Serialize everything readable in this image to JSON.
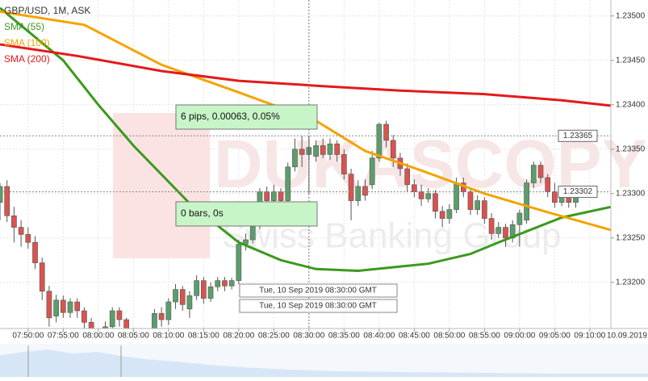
{
  "chart_data": {
    "type": "candlestick",
    "title": "GBP/USD, 1M, ASK",
    "watermark": "DUKASCOPY",
    "watermark_subtitle": "Swiss Banking Group",
    "xlim": [
      466,
      553
    ],
    "ylim": [
      1.23148,
      1.23518
    ],
    "yticks": [
      {
        "value": 1.232,
        "label": "1.23200"
      },
      {
        "value": 1.2325,
        "label": "1.23250"
      },
      {
        "value": 1.233,
        "label": "1.23300"
      },
      {
        "value": 1.2335,
        "label": "1.23350"
      },
      {
        "value": 1.234,
        "label": "1.23400"
      },
      {
        "value": 1.2345,
        "label": "1.23450"
      },
      {
        "value": 1.235,
        "label": "1.23500"
      }
    ],
    "xticks": [
      {
        "value": 470,
        "label": "07:50:00"
      },
      {
        "value": 475,
        "label": "07:55:00"
      },
      {
        "value": 480,
        "label": "08:00:00"
      },
      {
        "value": 485,
        "label": "08:05:00"
      },
      {
        "value": 490,
        "label": "08:10:00"
      },
      {
        "value": 495,
        "label": "08:15:00"
      },
      {
        "value": 500,
        "label": "08:20:00"
      },
      {
        "value": 505,
        "label": "08:25:00"
      },
      {
        "value": 510,
        "label": "08:30:00"
      },
      {
        "value": 515,
        "label": "08:35:00"
      },
      {
        "value": 520,
        "label": "08:40:00"
      },
      {
        "value": 525,
        "label": "08:45:00"
      },
      {
        "value": 530,
        "label": "08:50:00"
      },
      {
        "value": 535,
        "label": "08:55:00"
      },
      {
        "value": 540,
        "label": "09:00:00"
      },
      {
        "value": 545,
        "label": "09:05:00"
      },
      {
        "value": 550,
        "label": "09:10:00"
      }
    ],
    "date_label": "10.09.2019",
    "grid": true,
    "up_color": "#5b9e6b",
    "down_color": "#d9534f",
    "price_markers": [
      1.23365,
      1.23302
    ],
    "crosshair_x": 510,
    "measure_label": "6 pips, 0.00063, 0.05%",
    "bars_label": "0 bars, 0s",
    "crosshair_time_labels": [
      "Tue, 10 Sep 2019 08:30:00 GMT",
      "Tue, 10 Sep 2019 08:30:00 GMT"
    ],
    "series": [
      {
        "name": "SMA (55)",
        "color": "#3a9a1c",
        "x": [
          466,
          475,
          480,
          485,
          493,
          500,
          506,
          511,
          517,
          527,
          533,
          537,
          546,
          553
        ],
        "values": [
          1.23509,
          1.2345,
          1.234,
          1.23354,
          1.23289,
          1.23245,
          1.23225,
          1.23215,
          1.23213,
          1.23221,
          1.23232,
          1.23245,
          1.23273,
          1.23285
        ]
      },
      {
        "name": "SMA (100)",
        "color": "#f5a300",
        "x": [
          466,
          478,
          489,
          500,
          511,
          518,
          526,
          535,
          544,
          553
        ],
        "values": [
          1.23505,
          1.2349,
          1.23445,
          1.23414,
          1.23382,
          1.23348,
          1.23326,
          1.233,
          1.23279,
          1.23259
        ]
      },
      {
        "name": "SMA (200)",
        "color": "#e31a1c",
        "x": [
          466,
          477,
          489,
          500,
          512,
          523,
          535,
          546,
          553
        ],
        "values": [
          1.23468,
          1.23455,
          1.23438,
          1.23427,
          1.23421,
          1.23416,
          1.23412,
          1.23405,
          1.23399
        ]
      }
    ],
    "candles": [
      {
        "x": 466,
        "open": 1.2329,
        "high": 1.23312,
        "low": 1.2327,
        "close": 1.23308
      },
      {
        "x": 467,
        "open": 1.23308,
        "high": 1.23315,
        "low": 1.23268,
        "close": 1.23275
      },
      {
        "x": 468,
        "open": 1.23275,
        "high": 1.23285,
        "low": 1.23245,
        "close": 1.23262
      },
      {
        "x": 469,
        "open": 1.23262,
        "high": 1.2327,
        "low": 1.2324,
        "close": 1.23254
      },
      {
        "x": 470,
        "open": 1.23254,
        "high": 1.23262,
        "low": 1.23238,
        "close": 1.23245
      },
      {
        "x": 471,
        "open": 1.23245,
        "high": 1.23252,
        "low": 1.23215,
        "close": 1.23222
      },
      {
        "x": 472,
        "open": 1.23222,
        "high": 1.23228,
        "low": 1.2318,
        "close": 1.2319
      },
      {
        "x": 473,
        "open": 1.2319,
        "high": 1.23196,
        "low": 1.2315,
        "close": 1.2316
      },
      {
        "x": 474,
        "open": 1.23162,
        "high": 1.23186,
        "low": 1.23155,
        "close": 1.2318
      },
      {
        "x": 475,
        "open": 1.2318,
        "high": 1.23185,
        "low": 1.2316,
        "close": 1.23166
      },
      {
        "x": 476,
        "open": 1.23166,
        "high": 1.23182,
        "low": 1.2316,
        "close": 1.23178
      },
      {
        "x": 477,
        "open": 1.23178,
        "high": 1.23182,
        "low": 1.2316,
        "close": 1.23168
      },
      {
        "x": 478,
        "open": 1.23168,
        "high": 1.23172,
        "low": 1.23145,
        "close": 1.23155
      },
      {
        "x": 479,
        "open": 1.23155,
        "high": 1.2316,
        "low": 1.2313,
        "close": 1.2314
      },
      {
        "x": 480,
        "open": 1.2314,
        "high": 1.23148,
        "low": 1.23125,
        "close": 1.23135
      },
      {
        "x": 481,
        "open": 1.23135,
        "high": 1.23156,
        "low": 1.23128,
        "close": 1.2315
      },
      {
        "x": 482,
        "open": 1.2315,
        "high": 1.23172,
        "low": 1.23145,
        "close": 1.23168
      },
      {
        "x": 483,
        "open": 1.23168,
        "high": 1.23172,
        "low": 1.2315,
        "close": 1.23158
      },
      {
        "x": 484,
        "open": 1.23158,
        "high": 1.2316,
        "low": 1.2313,
        "close": 1.2314
      },
      {
        "x": 485,
        "open": 1.2314,
        "high": 1.23145,
        "low": 1.2312,
        "close": 1.2313
      },
      {
        "x": 486,
        "open": 1.2313,
        "high": 1.23138,
        "low": 1.23115,
        "close": 1.23125
      },
      {
        "x": 487,
        "open": 1.23125,
        "high": 1.23148,
        "low": 1.23118,
        "close": 1.2314
      },
      {
        "x": 488,
        "open": 1.2314,
        "high": 1.2317,
        "low": 1.23135,
        "close": 1.23165
      },
      {
        "x": 489,
        "open": 1.23165,
        "high": 1.23172,
        "low": 1.2315,
        "close": 1.23158
      },
      {
        "x": 490,
        "open": 1.23158,
        "high": 1.23182,
        "low": 1.23152,
        "close": 1.23178
      },
      {
        "x": 491,
        "open": 1.23178,
        "high": 1.23198,
        "low": 1.2317,
        "close": 1.23192
      },
      {
        "x": 492,
        "open": 1.23192,
        "high": 1.23196,
        "low": 1.23168,
        "close": 1.23175
      },
      {
        "x": 493,
        "open": 1.2317,
        "high": 1.2319,
        "low": 1.2316,
        "close": 1.23185
      },
      {
        "x": 494,
        "open": 1.23185,
        "high": 1.23208,
        "low": 1.2318,
        "close": 1.23202
      },
      {
        "x": 495,
        "open": 1.23202,
        "high": 1.23206,
        "low": 1.23176,
        "close": 1.23182
      },
      {
        "x": 496,
        "open": 1.23182,
        "high": 1.232,
        "low": 1.23178,
        "close": 1.23195
      },
      {
        "x": 497,
        "open": 1.23195,
        "high": 1.23206,
        "low": 1.2319,
        "close": 1.23202
      },
      {
        "x": 498,
        "open": 1.23202,
        "high": 1.23206,
        "low": 1.2319,
        "close": 1.23196
      },
      {
        "x": 499,
        "open": 1.23196,
        "high": 1.23205,
        "low": 1.23192,
        "close": 1.23202
      },
      {
        "x": 500,
        "open": 1.23202,
        "high": 1.23248,
        "low": 1.23198,
        "close": 1.23243
      },
      {
        "x": 501,
        "open": 1.23243,
        "high": 1.23255,
        "low": 1.23236,
        "close": 1.23248
      },
      {
        "x": 502,
        "open": 1.23248,
        "high": 1.23272,
        "low": 1.23244,
        "close": 1.23265
      },
      {
        "x": 503,
        "open": 1.23265,
        "high": 1.23306,
        "low": 1.2326,
        "close": 1.23302
      },
      {
        "x": 504,
        "open": 1.23302,
        "high": 1.23308,
        "low": 1.23288,
        "close": 1.23292
      },
      {
        "x": 505,
        "open": 1.23292,
        "high": 1.2331,
        "low": 1.23288,
        "close": 1.23302
      },
      {
        "x": 506,
        "open": 1.23302,
        "high": 1.23306,
        "low": 1.2328,
        "close": 1.23292
      },
      {
        "x": 507,
        "open": 1.23292,
        "high": 1.23335,
        "low": 1.23286,
        "close": 1.2333
      },
      {
        "x": 508,
        "open": 1.2333,
        "high": 1.23362,
        "low": 1.23325,
        "close": 1.2335
      },
      {
        "x": 509,
        "open": 1.2335,
        "high": 1.23365,
        "low": 1.2333,
        "close": 1.23344
      },
      {
        "x": 510,
        "open": 1.23344,
        "high": 1.2336,
        "low": 1.23338,
        "close": 1.23352
      },
      {
        "x": 511,
        "open": 1.23342,
        "high": 1.2336,
        "low": 1.23336,
        "close": 1.23354
      },
      {
        "x": 512,
        "open": 1.23354,
        "high": 1.23362,
        "low": 1.2334,
        "close": 1.23344
      },
      {
        "x": 513,
        "open": 1.23344,
        "high": 1.23362,
        "low": 1.23338,
        "close": 1.23356
      },
      {
        "x": 514,
        "open": 1.23356,
        "high": 1.2336,
        "low": 1.23336,
        "close": 1.23344
      },
      {
        "x": 515,
        "open": 1.23344,
        "high": 1.2335,
        "low": 1.23316,
        "close": 1.23322
      },
      {
        "x": 516,
        "open": 1.23322,
        "high": 1.23328,
        "low": 1.2327,
        "close": 1.23292
      },
      {
        "x": 517,
        "open": 1.23292,
        "high": 1.23315,
        "low": 1.23286,
        "close": 1.23308
      },
      {
        "x": 518,
        "open": 1.23308,
        "high": 1.23316,
        "low": 1.23292,
        "close": 1.23298
      },
      {
        "x": 519,
        "open": 1.2331,
        "high": 1.23348,
        "low": 1.23305,
        "close": 1.2334
      },
      {
        "x": 520,
        "open": 1.2334,
        "high": 1.2338,
        "low": 1.23336,
        "close": 1.23378
      },
      {
        "x": 521,
        "open": 1.23378,
        "high": 1.23382,
        "low": 1.23352,
        "close": 1.2336
      },
      {
        "x": 522,
        "open": 1.2336,
        "high": 1.23366,
        "low": 1.2333,
        "close": 1.2334
      },
      {
        "x": 523,
        "open": 1.2334,
        "high": 1.23346,
        "low": 1.2332,
        "close": 1.23328
      },
      {
        "x": 524,
        "open": 1.23328,
        "high": 1.23334,
        "low": 1.23302,
        "close": 1.2331
      },
      {
        "x": 525,
        "open": 1.2331,
        "high": 1.23316,
        "low": 1.23296,
        "close": 1.23302
      },
      {
        "x": 526,
        "open": 1.23302,
        "high": 1.2331,
        "low": 1.23286,
        "close": 1.23294
      },
      {
        "x": 527,
        "open": 1.23294,
        "high": 1.23306,
        "low": 1.2329,
        "close": 1.233
      },
      {
        "x": 528,
        "open": 1.233,
        "high": 1.23304,
        "low": 1.23272,
        "close": 1.2328
      },
      {
        "x": 529,
        "open": 1.2328,
        "high": 1.23286,
        "low": 1.23262,
        "close": 1.23272
      },
      {
        "x": 530,
        "open": 1.23272,
        "high": 1.23288,
        "low": 1.23266,
        "close": 1.23282
      },
      {
        "x": 531,
        "open": 1.23282,
        "high": 1.23318,
        "low": 1.23278,
        "close": 1.23312
      },
      {
        "x": 532,
        "open": 1.23312,
        "high": 1.23318,
        "low": 1.23296,
        "close": 1.23302
      },
      {
        "x": 533,
        "open": 1.23302,
        "high": 1.23306,
        "low": 1.23276,
        "close": 1.23282
      },
      {
        "x": 534,
        "open": 1.23282,
        "high": 1.23298,
        "low": 1.23276,
        "close": 1.23292
      },
      {
        "x": 535,
        "open": 1.23292,
        "high": 1.23296,
        "low": 1.23266,
        "close": 1.23272
      },
      {
        "x": 536,
        "open": 1.23272,
        "high": 1.23278,
        "low": 1.23248,
        "close": 1.23255
      },
      {
        "x": 537,
        "open": 1.23255,
        "high": 1.23268,
        "low": 1.2325,
        "close": 1.23262
      },
      {
        "x": 538,
        "open": 1.23262,
        "high": 1.23266,
        "low": 1.2324,
        "close": 1.2325
      },
      {
        "x": 539,
        "open": 1.2325,
        "high": 1.2327,
        "low": 1.23245,
        "close": 1.23265
      },
      {
        "x": 540,
        "open": 1.23265,
        "high": 1.23282,
        "low": 1.2324,
        "close": 1.23278
      },
      {
        "x": 541,
        "open": 1.2327,
        "high": 1.23316,
        "low": 1.23266,
        "close": 1.23312
      },
      {
        "x": 542,
        "open": 1.23312,
        "high": 1.23336,
        "low": 1.23306,
        "close": 1.23332
      },
      {
        "x": 543,
        "open": 1.23332,
        "high": 1.23336,
        "low": 1.23312,
        "close": 1.23318
      },
      {
        "x": 544,
        "open": 1.23318,
        "high": 1.23322,
        "low": 1.23296,
        "close": 1.23302
      },
      {
        "x": 545,
        "open": 1.23302,
        "high": 1.23312,
        "low": 1.23284,
        "close": 1.2329
      },
      {
        "x": 546,
        "open": 1.2329,
        "high": 1.23306,
        "low": 1.23286,
        "close": 1.233
      },
      {
        "x": 547,
        "open": 1.233,
        "high": 1.23304,
        "low": 1.23284,
        "close": 1.2329
      },
      {
        "x": 548,
        "open": 1.2329,
        "high": 1.23302,
        "low": 1.23284,
        "close": 1.23296
      }
    ]
  }
}
